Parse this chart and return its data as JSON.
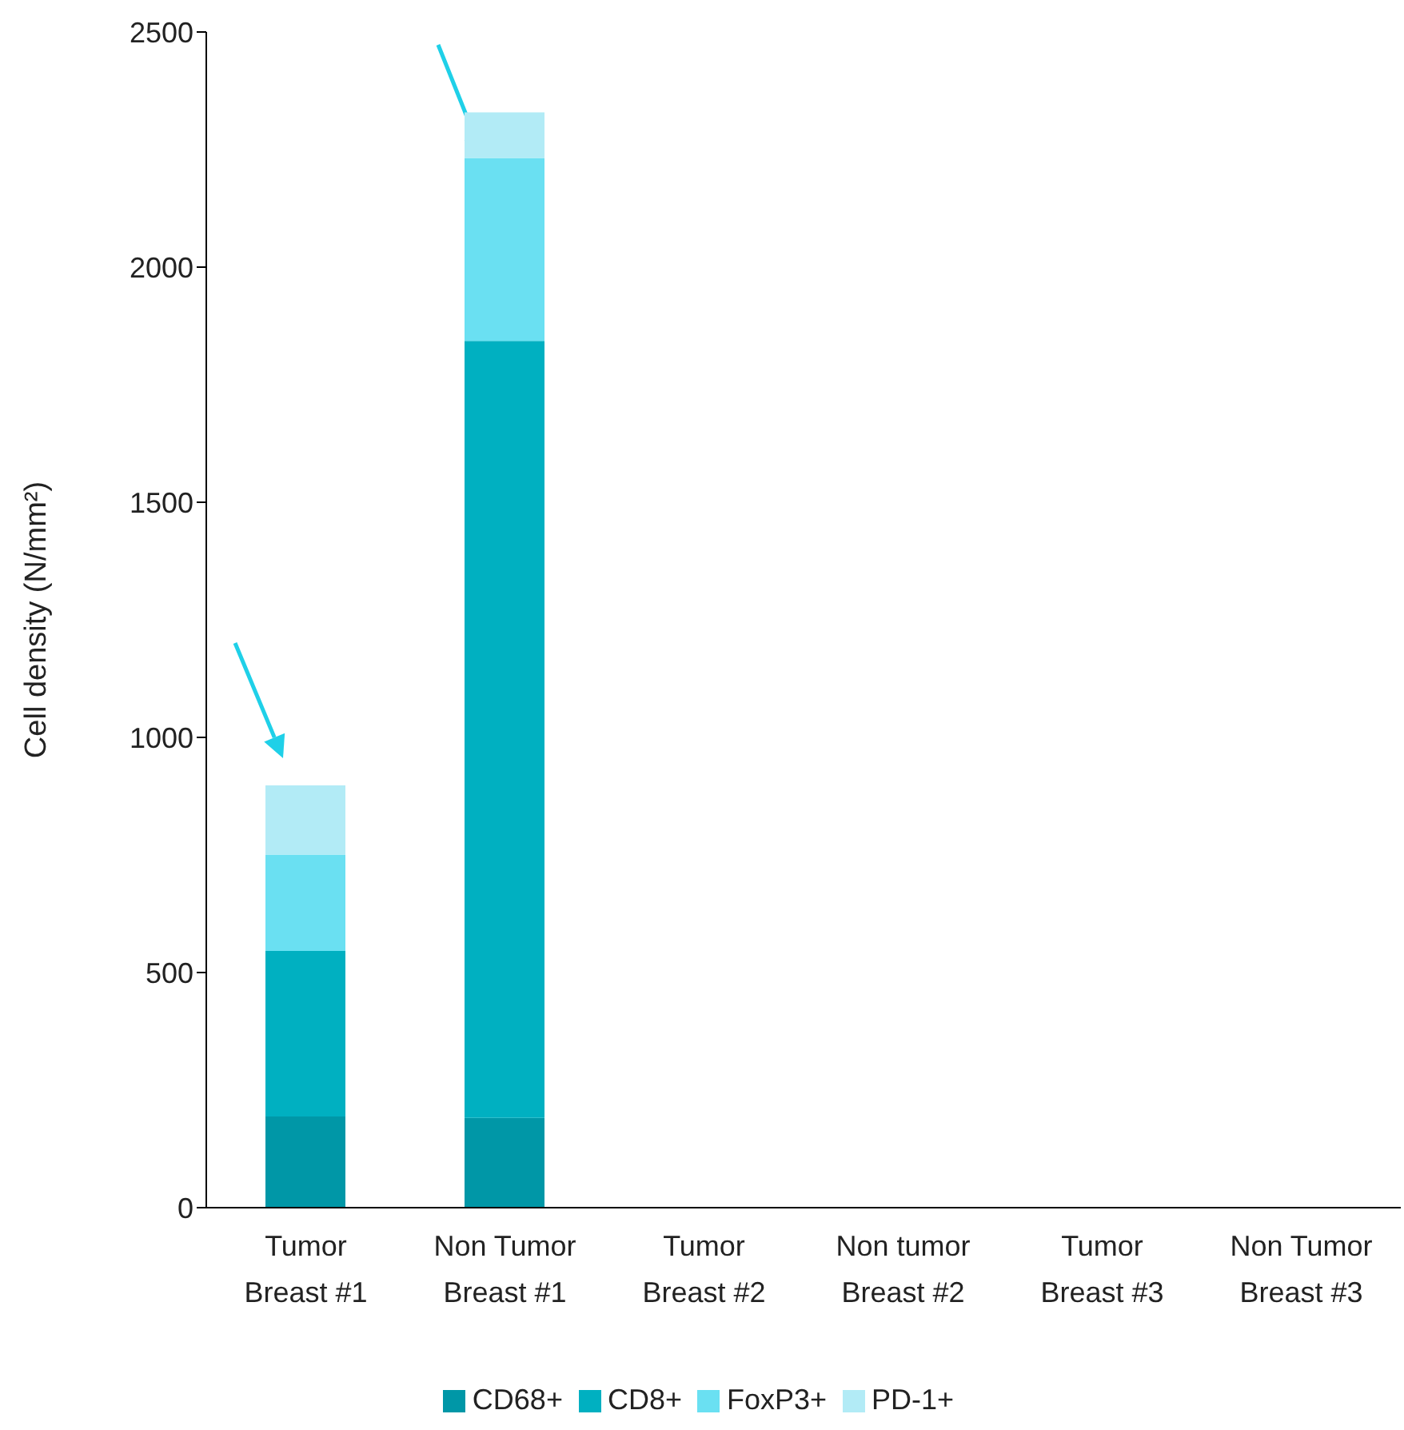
{
  "chart_data": {
    "type": "bar",
    "stacked": true,
    "ylabel": "Cell density (N/mm²)",
    "categories": [
      "Tumor Breast #1",
      "Non Tumor Breast #1",
      "Tumor Breast #2",
      "Non tumor Breast #2",
      "Tumor Breast #3",
      "Non Tumor Breast #3"
    ],
    "series": [
      {
        "name": "CD68+",
        "color": "#0097a7",
        "values": [
          194,
          191,
          null,
          null,
          null,
          null
        ]
      },
      {
        "name": "CD8+",
        "color": "#00b0c1",
        "values": [
          352,
          1652,
          null,
          null,
          null,
          null
        ]
      },
      {
        "name": "FoxP3+",
        "color": "#6ae0f2",
        "values": [
          205,
          389,
          null,
          null,
          null,
          null
        ]
      },
      {
        "name": "PD-1+",
        "color": "#b2ebf6",
        "values": [
          147,
          97,
          null,
          null,
          null,
          null
        ]
      }
    ],
    "ylim": [
      0,
      2500
    ],
    "yticks": [
      0,
      500,
      1000,
      1500,
      2000,
      2500
    ],
    "grid": false,
    "legend": "bottom"
  }
}
